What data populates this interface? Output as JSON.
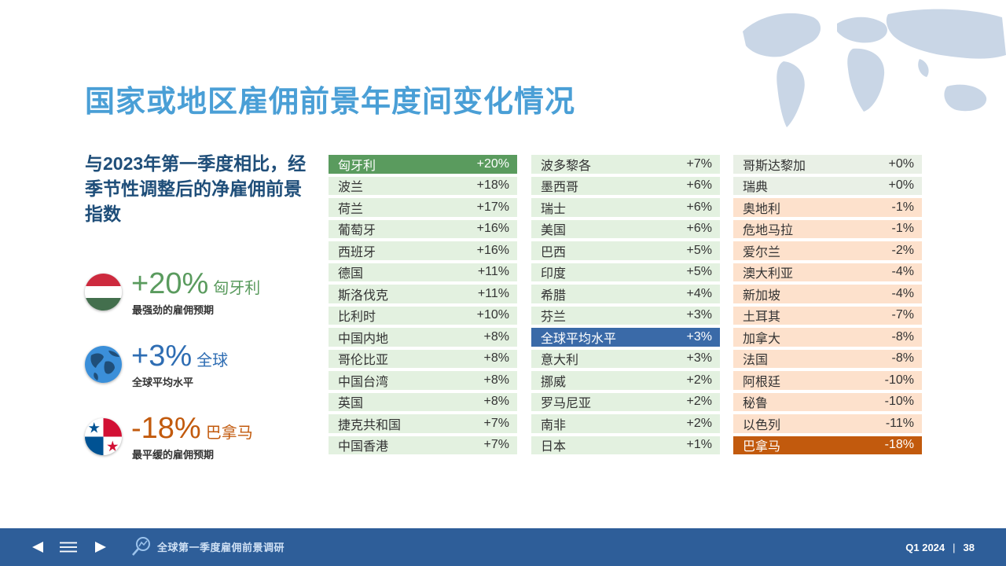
{
  "page": {
    "title": "国家或地区雇佣前景年度间变化情况",
    "subtitle": "与2023年第一季度相比，经季节性调整后的净雇佣前景指数"
  },
  "callouts": [
    {
      "value": "+20%",
      "label": "匈牙利",
      "desc": "最强劲的雇佣预期",
      "color": "#5a9b5e"
    },
    {
      "value": "+3%",
      "label": "全球",
      "desc": "全球平均水平",
      "color": "#2e6db3"
    },
    {
      "value": "-18%",
      "label": "巴拿马",
      "desc": "最平缓的雇佣预期",
      "color": "#c25a0d"
    }
  ],
  "table": {
    "col1": [
      {
        "name": "匈牙利",
        "value": "+20%"
      },
      {
        "name": "波兰",
        "value": "+18%"
      },
      {
        "name": "荷兰",
        "value": "+17%"
      },
      {
        "name": "葡萄牙",
        "value": "+16%"
      },
      {
        "name": "西班牙",
        "value": "+16%"
      },
      {
        "name": "德国",
        "value": "+11%"
      },
      {
        "name": "斯洛伐克",
        "value": "+11%"
      },
      {
        "name": "比利时",
        "value": "+10%"
      },
      {
        "name": "中国内地",
        "value": "+8%"
      },
      {
        "name": "哥伦比亚",
        "value": "+8%"
      },
      {
        "name": "中国台湾",
        "value": "+8%"
      },
      {
        "name": "英国",
        "value": "+8%"
      },
      {
        "name": "捷克共和国",
        "value": "+7%"
      },
      {
        "name": "中国香港",
        "value": "+7%"
      }
    ],
    "col2": [
      {
        "name": "波多黎各",
        "value": "+7%"
      },
      {
        "name": "墨西哥",
        "value": "+6%"
      },
      {
        "name": "瑞士",
        "value": "+6%"
      },
      {
        "name": "美国",
        "value": "+6%"
      },
      {
        "name": "巴西",
        "value": "+5%"
      },
      {
        "name": "印度",
        "value": "+5%"
      },
      {
        "name": "希腊",
        "value": "+4%"
      },
      {
        "name": "芬兰",
        "value": "+3%"
      },
      {
        "name": "全球平均水平",
        "value": "+3%"
      },
      {
        "name": "意大利",
        "value": "+3%"
      },
      {
        "name": "挪威",
        "value": "+2%"
      },
      {
        "name": "罗马尼亚",
        "value": "+2%"
      },
      {
        "name": "南非",
        "value": "+2%"
      },
      {
        "name": "日本",
        "value": "+1%"
      }
    ],
    "col3": [
      {
        "name": "哥斯达黎加",
        "value": "+0%"
      },
      {
        "name": "瑞典",
        "value": "+0%"
      },
      {
        "name": "奥地利",
        "value": "-1%"
      },
      {
        "name": "危地马拉",
        "value": "-1%"
      },
      {
        "name": "爱尔兰",
        "value": "-2%"
      },
      {
        "name": "澳大利亚",
        "value": "-4%"
      },
      {
        "name": "新加坡",
        "value": "-4%"
      },
      {
        "name": "土耳其",
        "value": "-7%"
      },
      {
        "name": "加拿大",
        "value": "-8%"
      },
      {
        "name": "法国",
        "value": "-8%"
      },
      {
        "name": "阿根廷",
        "value": "-10%"
      },
      {
        "name": "秘鲁",
        "value": "-10%"
      },
      {
        "name": "以色列",
        "value": "-11%"
      },
      {
        "name": "巴拿马",
        "value": "-18%"
      }
    ]
  },
  "footer": {
    "brand": "全球第一季度雇佣前景调研",
    "period": "Q1 2024",
    "separator": "|",
    "page_number": "38"
  },
  "colors": {
    "title": "#4a9fd6",
    "footer_bg": "#2e5e99",
    "positive_row": "#e3f1e0",
    "negative_row": "#fde1cc"
  }
}
